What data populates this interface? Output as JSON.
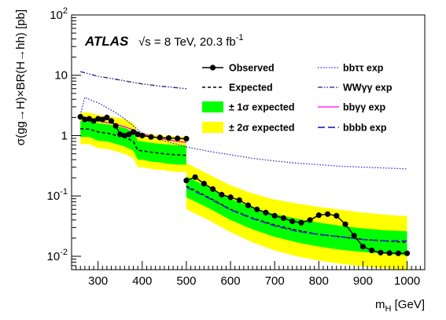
{
  "chart_data": {
    "type": "line",
    "ylabel": "σ(gg→H)×BR(H→hh) [pb]",
    "xlabel": "m_H [GeV]",
    "xlim": [
      240,
      1040
    ],
    "ylim": [
      0.006,
      100
    ],
    "yscale": "log",
    "x_ticks": [
      300,
      400,
      500,
      600,
      700,
      800,
      900,
      1000
    ],
    "y_ticks": [
      {
        "value": 0.01,
        "base": "10",
        "exp": "-2"
      },
      {
        "value": 0.1,
        "base": "10",
        "exp": "-1"
      },
      {
        "value": 1,
        "base": "1",
        "exp": ""
      },
      {
        "value": 10,
        "base": "10",
        "exp": ""
      },
      {
        "value": 100,
        "base": "10",
        "exp": "2"
      }
    ],
    "annotation": {
      "experiment": "ATLAS",
      "energy_prefix": "√s = 8 TeV, 20.3 fb",
      "energy_exp": "-1"
    },
    "legend": [
      {
        "key": "observed",
        "label": "Observed",
        "col": 0
      },
      {
        "key": "expected",
        "label": "Expected",
        "col": 0
      },
      {
        "key": "band1",
        "label": "± 1σ expected",
        "col": 0
      },
      {
        "key": "band2",
        "label": "± 2σ expected",
        "col": 0
      },
      {
        "key": "bbtautau",
        "label": "bbττ exp",
        "col": 1
      },
      {
        "key": "wwgg",
        "label": "WWγγ exp",
        "col": 1
      },
      {
        "key": "bbgg",
        "label": "bbγγ exp",
        "col": 1
      },
      {
        "key": "bbbb",
        "label": "bbbb exp",
        "col": 1
      }
    ],
    "colors": {
      "observed": "#000000",
      "expected": "#000000",
      "band1": "#00ff00",
      "band2": "#ffff00",
      "bbtautau": "#2a2ad0",
      "wwgg": "#1c1c80",
      "bbgg": "#ff00ff",
      "bbbb": "#3030c8"
    },
    "series": [
      {
        "key": "band2",
        "segments": [
          {
            "x": [
              260,
              280,
              300,
              320,
              340,
              360,
              380,
              390,
              400,
              420,
              440,
              460,
              480,
              500
            ],
            "lo": [
              0.72,
              0.72,
              0.62,
              0.6,
              0.55,
              0.5,
              0.42,
              0.3,
              0.3,
              0.28,
              0.27,
              0.26,
              0.25,
              0.25
            ],
            "hi": [
              2.4,
              2.4,
              2.2,
              2.1,
              2.0,
              1.9,
              1.6,
              1.15,
              1.1,
              1.05,
              1.0,
              1.0,
              0.95,
              0.95
            ]
          },
          {
            "x": [
              500,
              550,
              600,
              650,
              700,
              750,
              800,
              850,
              900,
              950,
              1000
            ],
            "lo": [
              0.06,
              0.04,
              0.025,
              0.017,
              0.0125,
              0.01,
              0.0085,
              0.0075,
              0.0068,
              0.0063,
              0.006
            ],
            "hi": [
              0.35,
              0.23,
              0.15,
              0.11,
              0.087,
              0.075,
              0.066,
              0.059,
              0.053,
              0.049,
              0.046
            ]
          }
        ]
      },
      {
        "key": "band1",
        "segments": [
          {
            "x": [
              260,
              280,
              300,
              320,
              340,
              360,
              380,
              390,
              400,
              420,
              440,
              460,
              480,
              500
            ],
            "lo": [
              0.95,
              0.95,
              0.82,
              0.8,
              0.73,
              0.66,
              0.56,
              0.4,
              0.4,
              0.37,
              0.36,
              0.34,
              0.33,
              0.33
            ],
            "hi": [
              1.75,
              1.75,
              1.6,
              1.55,
              1.45,
              1.35,
              1.15,
              0.82,
              0.8,
              0.76,
              0.73,
              0.71,
              0.69,
              0.68
            ]
          },
          {
            "x": [
              500,
              550,
              600,
              650,
              700,
              750,
              800,
              850,
              900,
              950,
              1000
            ],
            "lo": [
              0.095,
              0.063,
              0.04,
              0.028,
              0.021,
              0.017,
              0.0145,
              0.0128,
              0.0118,
              0.011,
              0.0104
            ],
            "hi": [
              0.21,
              0.14,
              0.09,
              0.064,
              0.05,
              0.042,
              0.036,
              0.032,
              0.029,
              0.027,
              0.026
            ]
          }
        ]
      },
      {
        "key": "expected",
        "segments": [
          {
            "x": [
              260,
              280,
              300,
              320,
              340,
              360,
              380,
              390,
              400,
              420,
              440,
              460,
              480,
              500
            ],
            "y": [
              1.3,
              1.28,
              1.15,
              1.1,
              1.02,
              0.95,
              0.8,
              0.57,
              0.56,
              0.53,
              0.51,
              0.49,
              0.48,
              0.47
            ]
          },
          {
            "x": [
              500,
              550,
              600,
              650,
              700,
              750,
              800,
              850,
              900,
              950,
              1000
            ],
            "y": [
              0.145,
              0.095,
              0.06,
              0.043,
              0.033,
              0.027,
              0.023,
              0.021,
              0.019,
              0.018,
              0.017
            ]
          }
        ]
      },
      {
        "key": "bbtautau",
        "segments": [
          {
            "x": [
              260,
              270,
              280,
              290,
              300,
              320,
              340,
              360,
              380,
              400,
              450,
              500,
              550,
              600,
              650,
              700,
              750,
              800,
              850,
              900,
              950,
              1000
            ],
            "y": [
              2.2,
              4.3,
              4.0,
              3.7,
              3.5,
              2.9,
              2.4,
              1.9,
              1.45,
              1.1,
              0.82,
              0.65,
              0.55,
              0.48,
              0.42,
              0.38,
              0.35,
              0.33,
              0.31,
              0.3,
              0.29,
              0.28
            ]
          }
        ]
      },
      {
        "key": "wwgg",
        "segments": [
          {
            "x": [
              260,
              280,
              300,
              320,
              340,
              360,
              380,
              400,
              420,
              440,
              460,
              480,
              500
            ],
            "y": [
              11.5,
              10.5,
              9.6,
              9.1,
              8.6,
              8.1,
              7.6,
              7.2,
              6.9,
              6.6,
              6.4,
              6.2,
              6.0
            ]
          }
        ]
      },
      {
        "key": "bbgg",
        "segments": [
          {
            "x": [
              260,
              280,
              300,
              320,
              340,
              360,
              380,
              400,
              420,
              440,
              460,
              480,
              500
            ],
            "y": [
              2.1,
              1.95,
              1.75,
              1.65,
              1.55,
              1.4,
              1.25,
              1.05,
              0.97,
              0.9,
              0.85,
              0.8,
              0.77
            ]
          }
        ]
      },
      {
        "key": "bbbb",
        "segments": [
          {
            "x": [
              500,
              550,
              600,
              650,
              700,
              750,
              800,
              850,
              900,
              950,
              1000
            ],
            "y": [
              0.14,
              0.092,
              0.059,
              0.042,
              0.032,
              0.026,
              0.023,
              0.021,
              0.019,
              0.018,
              0.018
            ]
          }
        ]
      },
      {
        "key": "observed",
        "segments": [
          {
            "x": [
              260,
              270,
              280,
              290,
              300,
              310,
              320,
              330,
              340,
              350,
              360,
              370,
              380,
              390,
              400,
              420,
              440,
              460,
              480,
              500
            ],
            "y": [
              2.05,
              1.85,
              1.9,
              1.75,
              1.9,
              1.85,
              2.0,
              1.75,
              1.45,
              1.05,
              1.0,
              1.05,
              1.15,
              1.05,
              1.0,
              0.95,
              0.93,
              0.91,
              0.9,
              0.89
            ]
          },
          {
            "x": [
              500,
              520,
              540,
              560,
              580,
              600,
              620,
              640,
              660,
              680,
              700,
              720,
              740,
              760,
              780,
              800,
              820,
              840,
              860,
              880,
              900,
              920,
              940,
              960,
              980,
              1000
            ],
            "y": [
              0.18,
              0.205,
              0.16,
              0.13,
              0.105,
              0.095,
              0.085,
              0.07,
              0.06,
              0.053,
              0.047,
              0.043,
              0.038,
              0.036,
              0.04,
              0.048,
              0.05,
              0.047,
              0.034,
              0.022,
              0.0145,
              0.0125,
              0.0115,
              0.0113,
              0.0112,
              0.0112
            ]
          }
        ]
      }
    ]
  }
}
